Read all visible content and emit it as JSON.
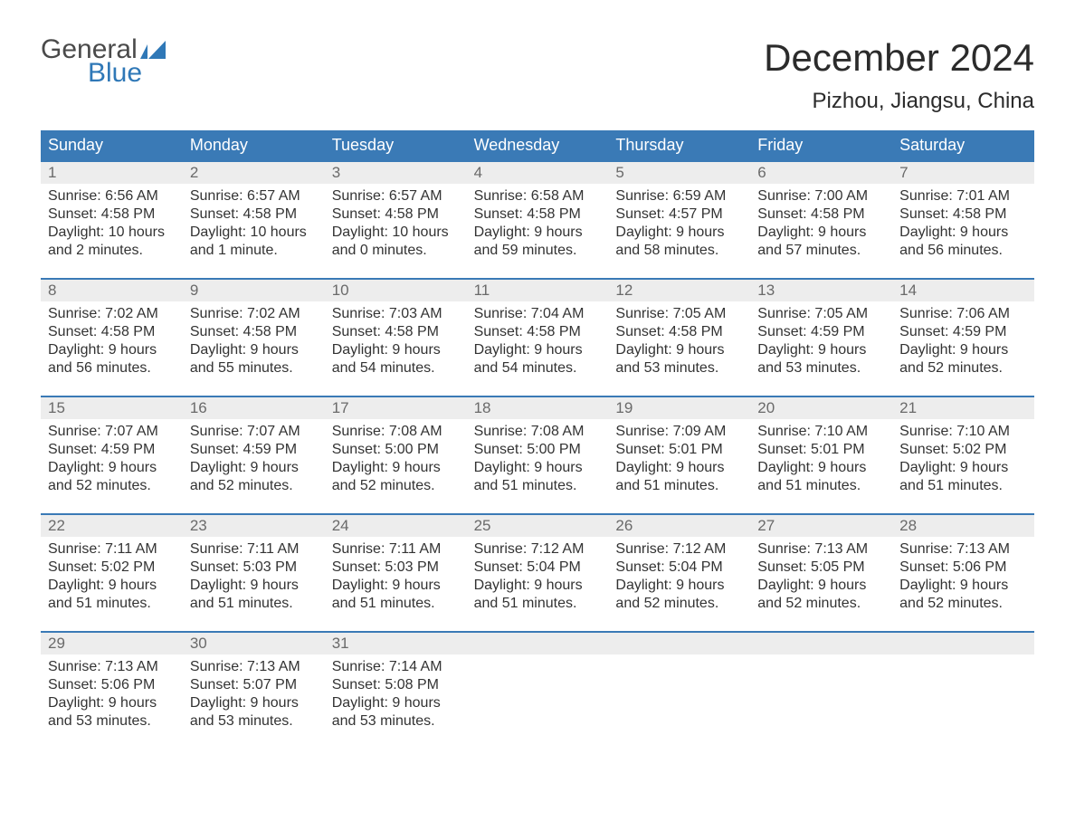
{
  "logo": {
    "line1": "General",
    "line2": "Blue"
  },
  "title": "December 2024",
  "location": "Pizhou, Jiangsu, China",
  "colors": {
    "header_bg": "#3a7ab6",
    "header_text": "#ffffff",
    "daynum_bg": "#ededed",
    "daynum_text": "#6a6a6a",
    "body_text": "#333333",
    "logo_gray": "#4a4a4a",
    "logo_blue": "#2f78b7",
    "background": "#ffffff"
  },
  "day_names": [
    "Sunday",
    "Monday",
    "Tuesday",
    "Wednesday",
    "Thursday",
    "Friday",
    "Saturday"
  ],
  "weeks": [
    [
      {
        "n": "1",
        "sunrise": "Sunrise: 6:56 AM",
        "sunset": "Sunset: 4:58 PM",
        "d1": "Daylight: 10 hours",
        "d2": "and 2 minutes."
      },
      {
        "n": "2",
        "sunrise": "Sunrise: 6:57 AM",
        "sunset": "Sunset: 4:58 PM",
        "d1": "Daylight: 10 hours",
        "d2": "and 1 minute."
      },
      {
        "n": "3",
        "sunrise": "Sunrise: 6:57 AM",
        "sunset": "Sunset: 4:58 PM",
        "d1": "Daylight: 10 hours",
        "d2": "and 0 minutes."
      },
      {
        "n": "4",
        "sunrise": "Sunrise: 6:58 AM",
        "sunset": "Sunset: 4:58 PM",
        "d1": "Daylight: 9 hours",
        "d2": "and 59 minutes."
      },
      {
        "n": "5",
        "sunrise": "Sunrise: 6:59 AM",
        "sunset": "Sunset: 4:57 PM",
        "d1": "Daylight: 9 hours",
        "d2": "and 58 minutes."
      },
      {
        "n": "6",
        "sunrise": "Sunrise: 7:00 AM",
        "sunset": "Sunset: 4:58 PM",
        "d1": "Daylight: 9 hours",
        "d2": "and 57 minutes."
      },
      {
        "n": "7",
        "sunrise": "Sunrise: 7:01 AM",
        "sunset": "Sunset: 4:58 PM",
        "d1": "Daylight: 9 hours",
        "d2": "and 56 minutes."
      }
    ],
    [
      {
        "n": "8",
        "sunrise": "Sunrise: 7:02 AM",
        "sunset": "Sunset: 4:58 PM",
        "d1": "Daylight: 9 hours",
        "d2": "and 56 minutes."
      },
      {
        "n": "9",
        "sunrise": "Sunrise: 7:02 AM",
        "sunset": "Sunset: 4:58 PM",
        "d1": "Daylight: 9 hours",
        "d2": "and 55 minutes."
      },
      {
        "n": "10",
        "sunrise": "Sunrise: 7:03 AM",
        "sunset": "Sunset: 4:58 PM",
        "d1": "Daylight: 9 hours",
        "d2": "and 54 minutes."
      },
      {
        "n": "11",
        "sunrise": "Sunrise: 7:04 AM",
        "sunset": "Sunset: 4:58 PM",
        "d1": "Daylight: 9 hours",
        "d2": "and 54 minutes."
      },
      {
        "n": "12",
        "sunrise": "Sunrise: 7:05 AM",
        "sunset": "Sunset: 4:58 PM",
        "d1": "Daylight: 9 hours",
        "d2": "and 53 minutes."
      },
      {
        "n": "13",
        "sunrise": "Sunrise: 7:05 AM",
        "sunset": "Sunset: 4:59 PM",
        "d1": "Daylight: 9 hours",
        "d2": "and 53 minutes."
      },
      {
        "n": "14",
        "sunrise": "Sunrise: 7:06 AM",
        "sunset": "Sunset: 4:59 PM",
        "d1": "Daylight: 9 hours",
        "d2": "and 52 minutes."
      }
    ],
    [
      {
        "n": "15",
        "sunrise": "Sunrise: 7:07 AM",
        "sunset": "Sunset: 4:59 PM",
        "d1": "Daylight: 9 hours",
        "d2": "and 52 minutes."
      },
      {
        "n": "16",
        "sunrise": "Sunrise: 7:07 AM",
        "sunset": "Sunset: 4:59 PM",
        "d1": "Daylight: 9 hours",
        "d2": "and 52 minutes."
      },
      {
        "n": "17",
        "sunrise": "Sunrise: 7:08 AM",
        "sunset": "Sunset: 5:00 PM",
        "d1": "Daylight: 9 hours",
        "d2": "and 52 minutes."
      },
      {
        "n": "18",
        "sunrise": "Sunrise: 7:08 AM",
        "sunset": "Sunset: 5:00 PM",
        "d1": "Daylight: 9 hours",
        "d2": "and 51 minutes."
      },
      {
        "n": "19",
        "sunrise": "Sunrise: 7:09 AM",
        "sunset": "Sunset: 5:01 PM",
        "d1": "Daylight: 9 hours",
        "d2": "and 51 minutes."
      },
      {
        "n": "20",
        "sunrise": "Sunrise: 7:10 AM",
        "sunset": "Sunset: 5:01 PM",
        "d1": "Daylight: 9 hours",
        "d2": "and 51 minutes."
      },
      {
        "n": "21",
        "sunrise": "Sunrise: 7:10 AM",
        "sunset": "Sunset: 5:02 PM",
        "d1": "Daylight: 9 hours",
        "d2": "and 51 minutes."
      }
    ],
    [
      {
        "n": "22",
        "sunrise": "Sunrise: 7:11 AM",
        "sunset": "Sunset: 5:02 PM",
        "d1": "Daylight: 9 hours",
        "d2": "and 51 minutes."
      },
      {
        "n": "23",
        "sunrise": "Sunrise: 7:11 AM",
        "sunset": "Sunset: 5:03 PM",
        "d1": "Daylight: 9 hours",
        "d2": "and 51 minutes."
      },
      {
        "n": "24",
        "sunrise": "Sunrise: 7:11 AM",
        "sunset": "Sunset: 5:03 PM",
        "d1": "Daylight: 9 hours",
        "d2": "and 51 minutes."
      },
      {
        "n": "25",
        "sunrise": "Sunrise: 7:12 AM",
        "sunset": "Sunset: 5:04 PM",
        "d1": "Daylight: 9 hours",
        "d2": "and 51 minutes."
      },
      {
        "n": "26",
        "sunrise": "Sunrise: 7:12 AM",
        "sunset": "Sunset: 5:04 PM",
        "d1": "Daylight: 9 hours",
        "d2": "and 52 minutes."
      },
      {
        "n": "27",
        "sunrise": "Sunrise: 7:13 AM",
        "sunset": "Sunset: 5:05 PM",
        "d1": "Daylight: 9 hours",
        "d2": "and 52 minutes."
      },
      {
        "n": "28",
        "sunrise": "Sunrise: 7:13 AM",
        "sunset": "Sunset: 5:06 PM",
        "d1": "Daylight: 9 hours",
        "d2": "and 52 minutes."
      }
    ],
    [
      {
        "n": "29",
        "sunrise": "Sunrise: 7:13 AM",
        "sunset": "Sunset: 5:06 PM",
        "d1": "Daylight: 9 hours",
        "d2": "and 53 minutes."
      },
      {
        "n": "30",
        "sunrise": "Sunrise: 7:13 AM",
        "sunset": "Sunset: 5:07 PM",
        "d1": "Daylight: 9 hours",
        "d2": "and 53 minutes."
      },
      {
        "n": "31",
        "sunrise": "Sunrise: 7:14 AM",
        "sunset": "Sunset: 5:08 PM",
        "d1": "Daylight: 9 hours",
        "d2": "and 53 minutes."
      },
      null,
      null,
      null,
      null
    ]
  ]
}
